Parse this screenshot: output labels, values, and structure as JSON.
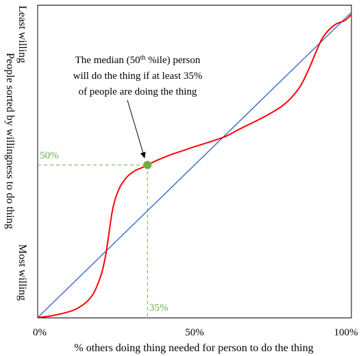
{
  "chart_data": {
    "type": "line",
    "xlabel": "% others doing thing needed for person to do the thing",
    "ylabel": "People sorted by willingness to do thing",
    "y_top_label": "Least willing",
    "y_bottom_label": "Most willing",
    "xlim": [
      0,
      100
    ],
    "ylim": [
      0,
      100
    ],
    "x_ticks": [
      {
        "value": 0,
        "label": "0%"
      },
      {
        "value": 50,
        "label": "50%"
      },
      {
        "value": 100,
        "label": "100%"
      }
    ],
    "series": [
      {
        "kind": "diagonal",
        "color": "#4472c4",
        "x": [
          0,
          100
        ],
        "y": [
          0,
          100
        ]
      },
      {
        "kind": "s-curve",
        "color": "#ff0000",
        "x": [
          0,
          5,
          12,
          17,
          20,
          21.5,
          22.5,
          24,
          26,
          28.5,
          31,
          33,
          35,
          38,
          42,
          46,
          50,
          55,
          60,
          63.5,
          66,
          70,
          74,
          78,
          81,
          84,
          86.5,
          88.5,
          90.5,
          92.5,
          95,
          98,
          100
        ],
        "y": [
          0,
          0.7,
          2.7,
          6.7,
          13.3,
          19.5,
          26,
          36,
          42.3,
          46.1,
          48.1,
          49,
          50,
          51.5,
          53.2,
          54.6,
          56,
          57.6,
          59.4,
          61.3,
          62.6,
          64.6,
          66.8,
          69.4,
          72.2,
          76.3,
          81.6,
          86.5,
          91.1,
          93.9,
          96.1,
          97.4,
          99.3
        ]
      }
    ],
    "highlight_point": {
      "x": 35,
      "y": 50,
      "color": "#70ad47"
    },
    "guide_labels": {
      "y": "50%",
      "x": "35%"
    },
    "annotation": {
      "line1_a": "The median (50",
      "line1_sup": "th",
      "line1_b": " %ile) person",
      "line2": "will do the thing if at least 35%",
      "line3": "of people are doing the thing"
    },
    "grid": false
  }
}
